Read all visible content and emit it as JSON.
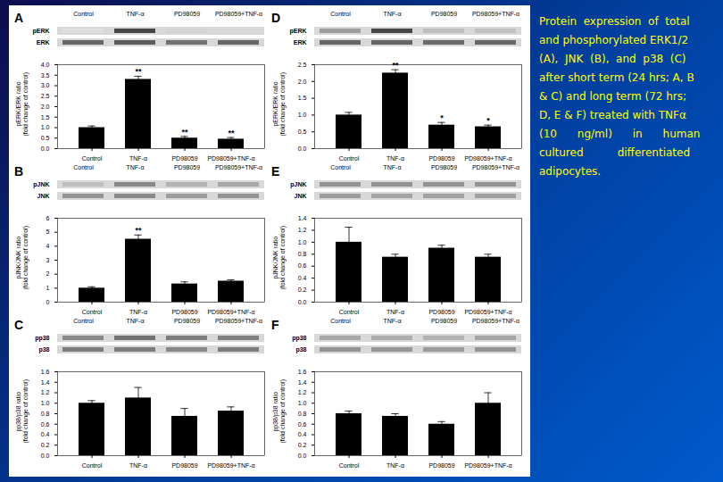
{
  "chart_data": [
    {
      "type": "bar",
      "title": "A",
      "color": "#000000",
      "categories": [
        "Control",
        "TNF-α",
        "PD98059",
        "PD98059+TNF-α"
      ],
      "values": [
        1.0,
        3.3,
        0.5,
        0.45
      ],
      "errors": [
        0.08,
        0.15,
        0.08,
        0.08
      ],
      "ylabel": "pERK/ERK ratio\n(fold change of control)",
      "ylim": [
        0,
        4
      ],
      "yticks": [
        {
          "value": 0,
          "label": "0.0"
        },
        0.5,
        {
          "value": 1.0,
          "label": "1.0"
        },
        1.5,
        {
          "value": 2.0,
          "label": "2.0"
        },
        2.5,
        {
          "value": 3.0,
          "label": "3.0"
        },
        3.5,
        {
          "value": 4.0,
          "label": "4.0"
        }
      ],
      "significance": [
        null,
        "**",
        "**",
        "**"
      ],
      "blot": {
        "row_labels": [
          "pERK",
          "ERK"
        ],
        "lane_labels": [
          "Control",
          "TNF-α",
          "PD98059",
          "PD98059+TNF-α"
        ],
        "intensities": [
          [
            0.15,
            0.85,
            0.2,
            0.18
          ],
          [
            0.7,
            0.75,
            0.65,
            0.7
          ]
        ]
      }
    },
    {
      "type": "bar",
      "title": "D",
      "color": "#000000",
      "categories": [
        "Control",
        "TNF-α",
        "PD98059",
        "PD98059+TNF-α"
      ],
      "values": [
        1.0,
        2.25,
        0.7,
        0.65
      ],
      "errors": [
        0.08,
        0.1,
        0.08,
        0.05
      ],
      "ylabel": "pERK/ERK ratio\n(fold change of control)",
      "ylim": [
        0,
        2.5
      ],
      "yticks": [
        {
          "value": 0,
          "label": "0.0"
        },
        0.5,
        {
          "value": 1.0,
          "label": "1.0"
        },
        1.5,
        {
          "value": 2.0,
          "label": "2.0"
        },
        2.5
      ],
      "significance": [
        null,
        "**",
        "*",
        "*"
      ],
      "blot": {
        "row_labels": [
          "pERK",
          "ERK"
        ],
        "lane_labels": [
          "Control",
          "TNF-α",
          "PD98059",
          "PD98059+TNF-α"
        ],
        "intensities": [
          [
            0.45,
            0.85,
            0.3,
            0.28
          ],
          [
            0.7,
            0.72,
            0.68,
            0.7
          ]
        ]
      }
    },
    {
      "type": "bar",
      "title": "B",
      "color": "#000000",
      "categories": [
        "Control",
        "TNF-α",
        "PD98059",
        "PD98059+TNF-α"
      ],
      "values": [
        1.0,
        4.5,
        1.3,
        1.5
      ],
      "errors": [
        0.1,
        0.3,
        0.15,
        0.1
      ],
      "ylabel": "pJNK/JNK ratio\n(fold change of control)",
      "ylim": [
        0,
        6
      ],
      "yticks": [
        0,
        1,
        2,
        3,
        4,
        5,
        6
      ],
      "significance": [
        null,
        "**",
        null,
        null
      ],
      "blot": {
        "row_labels": [
          "pJNK",
          "JNK"
        ],
        "lane_labels": [
          "Control",
          "TNF-α",
          "PD98059",
          "PD98059+TNF-α"
        ],
        "intensities": [
          [
            0.3,
            0.55,
            0.35,
            0.4
          ],
          [
            0.5,
            0.55,
            0.45,
            0.5
          ]
        ]
      }
    },
    {
      "type": "bar",
      "title": "E",
      "color": "#000000",
      "categories": [
        "Control",
        "TNF-α",
        "PD98059",
        "PD98059+TNF-α"
      ],
      "values": [
        1.0,
        0.75,
        0.9,
        0.75
      ],
      "errors": [
        0.25,
        0.05,
        0.05,
        0.05
      ],
      "ylabel": "pJNK/JNK ratio\n(fold change of control)",
      "ylim": [
        0,
        1.4
      ],
      "yticks": [
        {
          "value": 0,
          "label": "0.0"
        },
        0.2,
        0.4,
        0.6,
        0.8,
        {
          "value": 1.0,
          "label": "1.0"
        },
        1.2,
        1.4
      ],
      "significance": [
        null,
        null,
        null,
        null
      ],
      "blot": {
        "row_labels": [
          "pJNK",
          "JNK"
        ],
        "lane_labels": [
          "Control",
          "TNF-α",
          "PD98059",
          "PD98059+TNF-α"
        ],
        "intensities": [
          [
            0.5,
            0.5,
            0.5,
            0.5
          ],
          [
            0.45,
            0.42,
            0.43,
            0.44
          ]
        ]
      }
    },
    {
      "type": "bar",
      "title": "C",
      "color": "#000000",
      "categories": [
        "Control",
        "TNF-α",
        "PD98059",
        "PD98059+TNF-α"
      ],
      "values": [
        1.0,
        1.1,
        0.75,
        0.85
      ],
      "errors": [
        0.05,
        0.2,
        0.15,
        0.08
      ],
      "ylabel": "pp38/p38 ratio\n(fold change of control)",
      "ylim": [
        0,
        1.6
      ],
      "yticks": [
        {
          "value": 0,
          "label": "0.0"
        },
        0.2,
        0.4,
        0.6,
        0.8,
        {
          "value": 1.0,
          "label": "1.0"
        },
        1.2,
        1.4,
        1.6
      ],
      "significance": [
        null,
        null,
        null,
        null
      ],
      "blot": {
        "row_labels": [
          "pp38",
          "p38"
        ],
        "lane_labels": [
          "Control",
          "TNF-α",
          "PD98059",
          "PD98059+TNF-α"
        ],
        "intensities": [
          [
            0.55,
            0.65,
            0.6,
            0.58
          ],
          [
            0.6,
            0.6,
            0.55,
            0.6
          ]
        ]
      }
    },
    {
      "type": "bar",
      "title": "F",
      "color": "#000000",
      "categories": [
        "Control",
        "TNF-α",
        "PD98059",
        "PD98059+TNF-α"
      ],
      "values": [
        0.8,
        0.75,
        0.6,
        1.0
      ],
      "errors": [
        0.05,
        0.05,
        0.05,
        0.2
      ],
      "ylabel": "pp38/p38 ratio\n(fold change of control)",
      "ylim": [
        0,
        1.6
      ],
      "yticks": [
        {
          "value": 0,
          "label": "0.0"
        },
        0.2,
        0.4,
        0.6,
        0.8,
        {
          "value": 1.0,
          "label": "1.0"
        },
        1.2,
        1.4,
        1.6
      ],
      "significance": [
        null,
        null,
        null,
        null
      ],
      "blot": {
        "row_labels": [
          "pp38",
          "p38"
        ],
        "lane_labels": [
          "Control",
          "TNF-α",
          "PD98059",
          "PD98059+TNF-α"
        ],
        "intensities": [
          [
            0.4,
            0.38,
            0.35,
            0.42
          ],
          [
            0.5,
            0.48,
            0.46,
            0.5
          ]
        ]
      }
    }
  ],
  "caption": {
    "color": "#ffff00",
    "lines": [
      "Protein  expression  of  total",
      "and phosphorylated ERK1/2",
      "(A),  JNK  (B),  and  p38  (C)",
      "after short term (24 hrs; A, B",
      "& C) and long term (72 hrs;",
      "D, E & F) treated with TNFα",
      "(10      ng/ml)      in      human",
      "cultured          differentiated",
      "adipocytes."
    ]
  }
}
